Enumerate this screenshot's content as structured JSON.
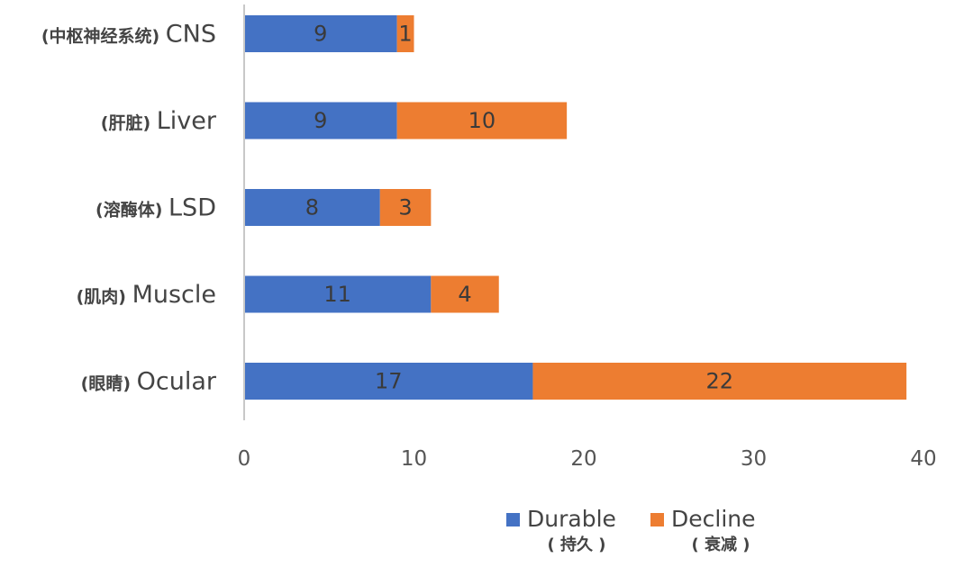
{
  "chart_data": {
    "type": "bar",
    "orientation": "horizontal",
    "stacked": true,
    "categories": [
      {
        "cn": "(中枢神经系统)",
        "en": "CNS"
      },
      {
        "cn": "(肝脏)",
        "en": "Liver"
      },
      {
        "cn": "(溶酶体)",
        "en": "LSD"
      },
      {
        "cn": "(肌肉)",
        "en": "Muscle"
      },
      {
        "cn": "(眼睛)",
        "en": "Ocular"
      }
    ],
    "series": [
      {
        "name": "Durable",
        "name_cn": "( 持久 )",
        "color": "#4472c4",
        "values": [
          9,
          9,
          8,
          11,
          17
        ]
      },
      {
        "name": "Decline",
        "name_cn": "( 衰减 )",
        "color": "#ed7d31",
        "values": [
          1,
          10,
          3,
          4,
          22
        ]
      }
    ],
    "xlim": [
      0,
      40
    ],
    "xticks": [
      0,
      10,
      20,
      30,
      40
    ],
    "legend_position": "bottom",
    "grid": false
  }
}
